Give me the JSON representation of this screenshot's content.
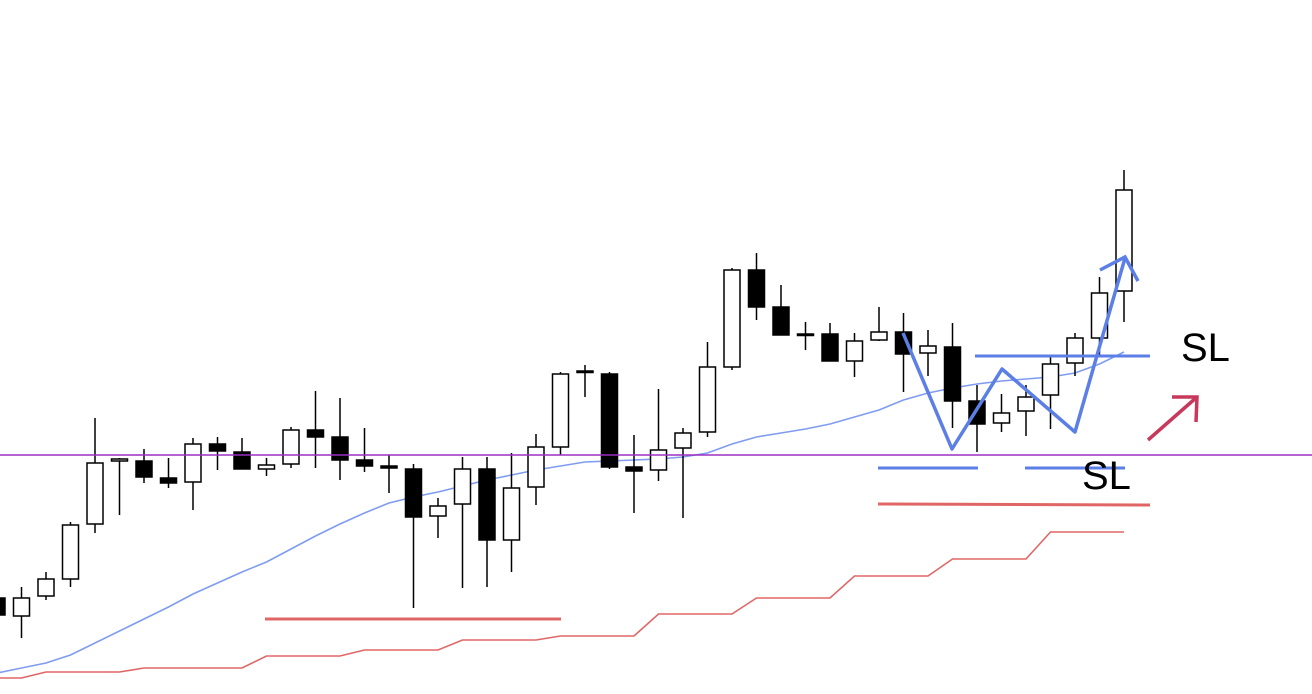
{
  "chart_data": {
    "type": "candlestick",
    "ylim": [
      0,
      694
    ],
    "open": [
      96,
      78,
      98,
      115,
      170,
      233,
      233,
      216,
      212,
      250,
      242,
      225,
      230,
      264,
      257,
      234,
      228,
      225,
      178,
      190,
      225,
      154,
      207,
      247,
      322,
      320,
      227,
      224,
      246,
      262,
      327,
      424,
      387,
      360,
      360,
      333,
      354,
      362,
      341,
      347,
      293,
      271,
      283,
      299,
      331,
      356,
      403
    ],
    "high": [
      96,
      107,
      122,
      172,
      276,
      236,
      245,
      236,
      256,
      257,
      256,
      236,
      267,
      303,
      296,
      266,
      239,
      230,
      196,
      237,
      237,
      241,
      260,
      322,
      329,
      322,
      259,
      305,
      266,
      352,
      426,
      441,
      409,
      372,
      371,
      361,
      387,
      381,
      364,
      371,
      309,
      300,
      309,
      337,
      361,
      417,
      524
    ],
    "low": [
      79,
      56,
      94,
      107,
      161,
      179,
      211,
      206,
      184,
      224,
      225,
      218,
      226,
      226,
      214,
      222,
      201,
      86,
      156,
      106,
      107,
      122,
      189,
      239,
      297,
      225,
      181,
      213,
      176,
      257,
      324,
      374,
      359,
      344,
      333,
      317,
      353,
      302,
      318,
      266,
      242,
      262,
      258,
      265,
      318,
      339,
      372
    ],
    "close": [
      79,
      96,
      115,
      169,
      231,
      235,
      217,
      211,
      250,
      243,
      225,
      229,
      264,
      257,
      234,
      228,
      226,
      177,
      188,
      225,
      154,
      206,
      247,
      320,
      323,
      227,
      223,
      244,
      261,
      327,
      424,
      387,
      359,
      359,
      333,
      353,
      362,
      340,
      348,
      293,
      270,
      281,
      297,
      330,
      356,
      401,
      504
    ],
    "series": [
      {
        "color": "#7f9cf0",
        "values": [
          21,
          26,
          31,
          39,
          51,
          63,
          75,
          87,
          100,
          111,
          122,
          132,
          145,
          158,
          170,
          181,
          191,
          197,
          202,
          208,
          214,
          219,
          224,
          228,
          232,
          233,
          234,
          235,
          237,
          241,
          250,
          257,
          261,
          265,
          270,
          277,
          284,
          294,
          301,
          306,
          310,
          313,
          315,
          317,
          321,
          330,
          342
        ]
      },
      {
        "color": "#e06666",
        "values": [
          16,
          16,
          22,
          22,
          22,
          22,
          26,
          26,
          26,
          26,
          26,
          38,
          38,
          38,
          38,
          44,
          44,
          44,
          44,
          54,
          54,
          54,
          54,
          58,
          58,
          58,
          58,
          80,
          80,
          80,
          80,
          96,
          96,
          96,
          96,
          118,
          118,
          118,
          118,
          135,
          135,
          135,
          135,
          162,
          162,
          162,
          162
        ]
      }
    ],
    "annotations": [
      "SL",
      "SL"
    ]
  }
}
